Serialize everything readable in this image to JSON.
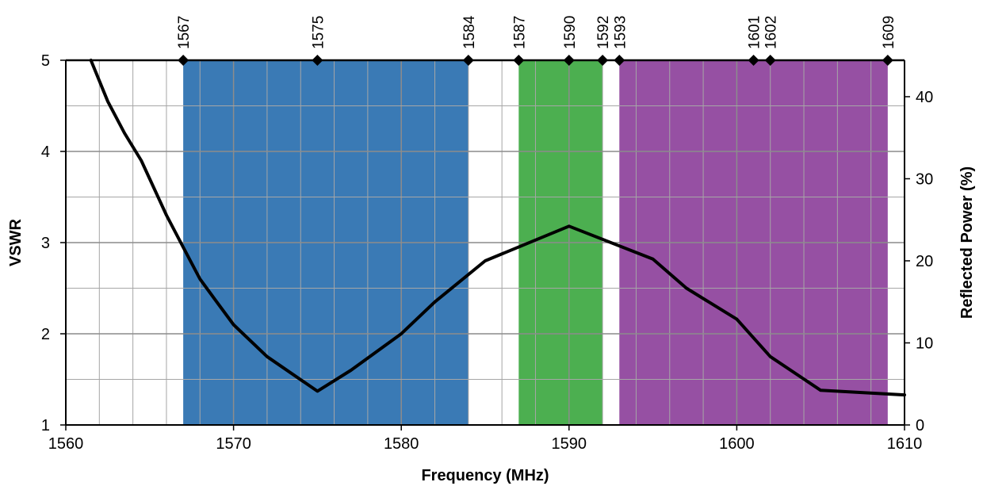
{
  "chart_data": {
    "type": "line",
    "xlabel": "Frequency (MHz)",
    "ylabel": "VSWR",
    "y2label": "Reflected Power (%)",
    "xlim": [
      1560,
      1610
    ],
    "ylim": [
      1,
      5
    ],
    "y2lim": [
      0,
      44.44
    ],
    "x_ticks": [
      "1560",
      "1570",
      "1580",
      "1590",
      "1600",
      "1610"
    ],
    "y_ticks": [
      "1",
      "2",
      "3",
      "4",
      "5"
    ],
    "y2_ticks": [
      "0",
      "10",
      "20",
      "30",
      "40"
    ],
    "x_minor_step": 1,
    "grid": true,
    "bands": [
      {
        "from": 1567,
        "to": 1584,
        "color": "#3a7ab5"
      },
      {
        "from": 1587,
        "to": 1592,
        "color": "#4caf50"
      },
      {
        "from": 1593,
        "to": 1609,
        "color": "#9650a3"
      }
    ],
    "markers": [
      "1567",
      "1575",
      "1584",
      "1587",
      "1590",
      "1592",
      "1593",
      "1601",
      "1602",
      "1609"
    ],
    "series": [
      {
        "color": "#000000",
        "x": [
          1561.5,
          1562.5,
          1563.5,
          1564.5,
          1565,
          1566,
          1567,
          1568,
          1569,
          1570,
          1572,
          1575,
          1577,
          1580,
          1582,
          1584,
          1585,
          1590,
          1595,
          1597,
          1600,
          1602,
          1605,
          1610
        ],
        "y": [
          5.0,
          4.55,
          4.2,
          3.9,
          3.7,
          3.3,
          2.95,
          2.6,
          2.35,
          2.1,
          1.75,
          1.37,
          1.6,
          2.0,
          2.35,
          2.65,
          2.8,
          3.18,
          2.82,
          2.5,
          2.16,
          1.75,
          1.38,
          1.33
        ]
      }
    ]
  }
}
